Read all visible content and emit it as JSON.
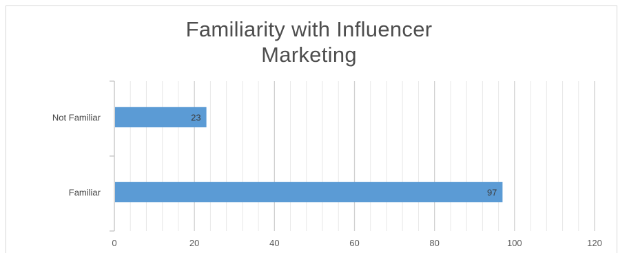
{
  "chart_data": {
    "type": "bar",
    "orientation": "horizontal",
    "title_lines": [
      "Familiarity with Influencer",
      "Marketing"
    ],
    "categories": [
      "Not Familiar",
      "Familiar"
    ],
    "values": [
      23,
      97
    ],
    "data_labels": [
      "23",
      "97"
    ],
    "xlim": [
      0,
      120
    ],
    "x_ticks": [
      0,
      20,
      40,
      60,
      80,
      100,
      120
    ],
    "x_tick_labels": [
      "0",
      "20",
      "40",
      "60",
      "80",
      "100",
      "120"
    ],
    "grid": true,
    "bar_color": "#5b9bd5"
  }
}
